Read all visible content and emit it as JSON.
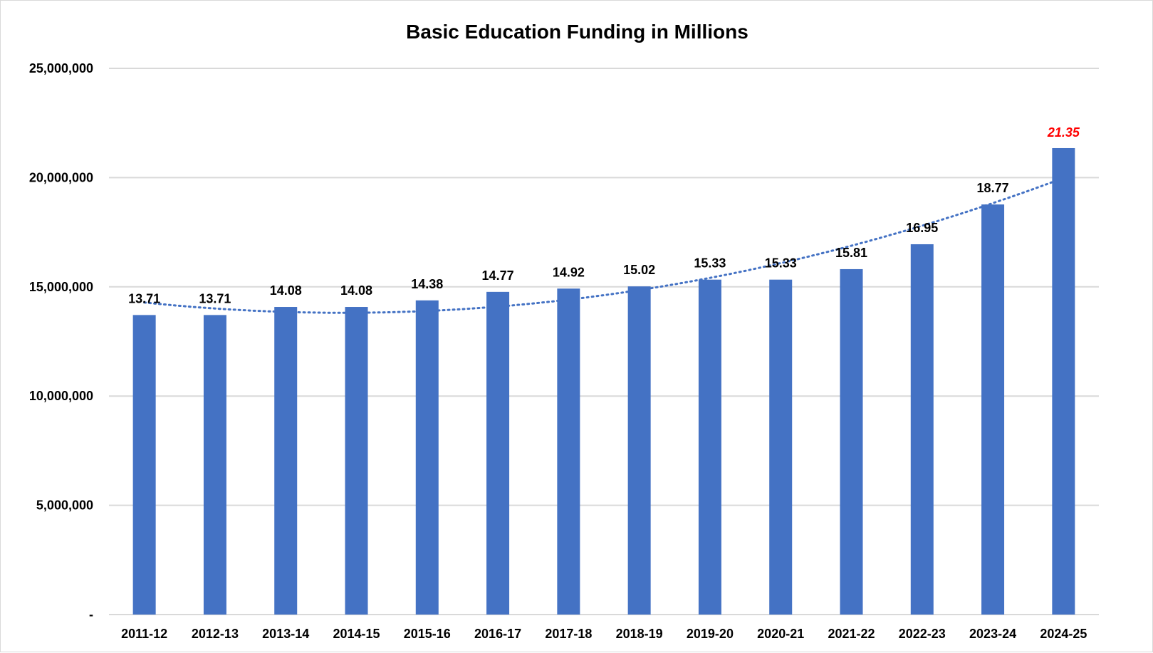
{
  "chart_data": {
    "type": "bar",
    "title": "Basic Education Funding in Millions",
    "xlabel": "",
    "ylabel": "",
    "categories": [
      "2011-12",
      "2012-13",
      "2013-14",
      "2014-15",
      "2015-16",
      "2016-17",
      "2017-18",
      "2018-19",
      "2019-20",
      "2020-21",
      "2021-22",
      "2022-23",
      "2023-24",
      "2024-25"
    ],
    "values": [
      13710000,
      13710000,
      14080000,
      14080000,
      14380000,
      14770000,
      14920000,
      15020000,
      15330000,
      15330000,
      15810000,
      16950000,
      18770000,
      21350000
    ],
    "data_labels": [
      "13.71",
      "13.71",
      "14.08",
      "14.08",
      "14.38",
      "14.77",
      "14.92",
      "15.02",
      "15.33",
      "15.33",
      "15.81",
      "16.95",
      "18.77",
      "21.35"
    ],
    "highlight_label_index": 13,
    "ylim": [
      0,
      25000000
    ],
    "yticks": [
      0,
      5000000,
      10000000,
      15000000,
      20000000,
      25000000
    ],
    "ytick_labels": [
      "-",
      "5,000,000",
      "10,000,000",
      "15,000,000",
      "20,000,000",
      "25,000,000"
    ],
    "trendline": {
      "type": "polynomial",
      "style": "dotted"
    },
    "grid": true,
    "legend": "none",
    "colors": {
      "bar": "#4472c4",
      "trendline": "#4472c4",
      "highlight_label": "#ff0000",
      "grid": "#d9d9d9"
    }
  }
}
